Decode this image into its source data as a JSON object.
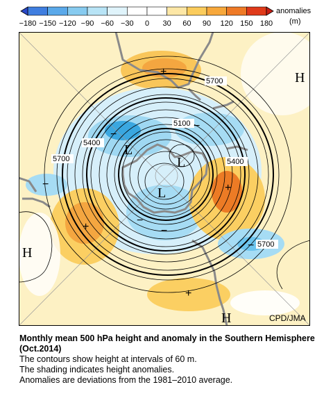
{
  "colorbar": {
    "label": "anomalies",
    "unit": "(m)",
    "ticks": [
      "−180",
      "−150",
      "−120",
      "−90",
      "−60",
      "−30",
      "0",
      "30",
      "60",
      "90",
      "120",
      "150",
      "180"
    ],
    "colors": [
      "#2a48c8",
      "#3f7ee0",
      "#5aa9ea",
      "#87cbf0",
      "#b8e4f6",
      "#e0f4fb",
      "#ffffff",
      "#ffffff",
      "#fde7a6",
      "#fbcc5c",
      "#f7a83b",
      "#ef7a26",
      "#e03a1a",
      "#c81e14"
    ]
  },
  "map": {
    "projection": "polar stereographic, Southern Hemisphere",
    "contour_labels": [
      "5700",
      "5100",
      "5400",
      "5700",
      "5400",
      "5700"
    ],
    "markers": {
      "high": "H",
      "low": "L",
      "plus": "+",
      "minus": "−"
    },
    "credit": "CPD/JMA",
    "colors": {
      "warm": "#f9bf4c",
      "warm_light": "#fde8a8",
      "hot": "#ec7b25",
      "cool": "#a6dcf4",
      "cool_mid": "#6cc4ee",
      "cool_dark": "#3aa7e0",
      "land": "#8a8a8a"
    }
  },
  "caption": {
    "title": "Monthly mean 500 hPa height and anomaly in the Southern Hemisphere (Oct.2014)",
    "line1": "The contours show height at intervals of 60 m.",
    "line2": "The shading indicates height anomalies.",
    "line3": "Anomalies are deviations from the 1981–2010 average."
  }
}
